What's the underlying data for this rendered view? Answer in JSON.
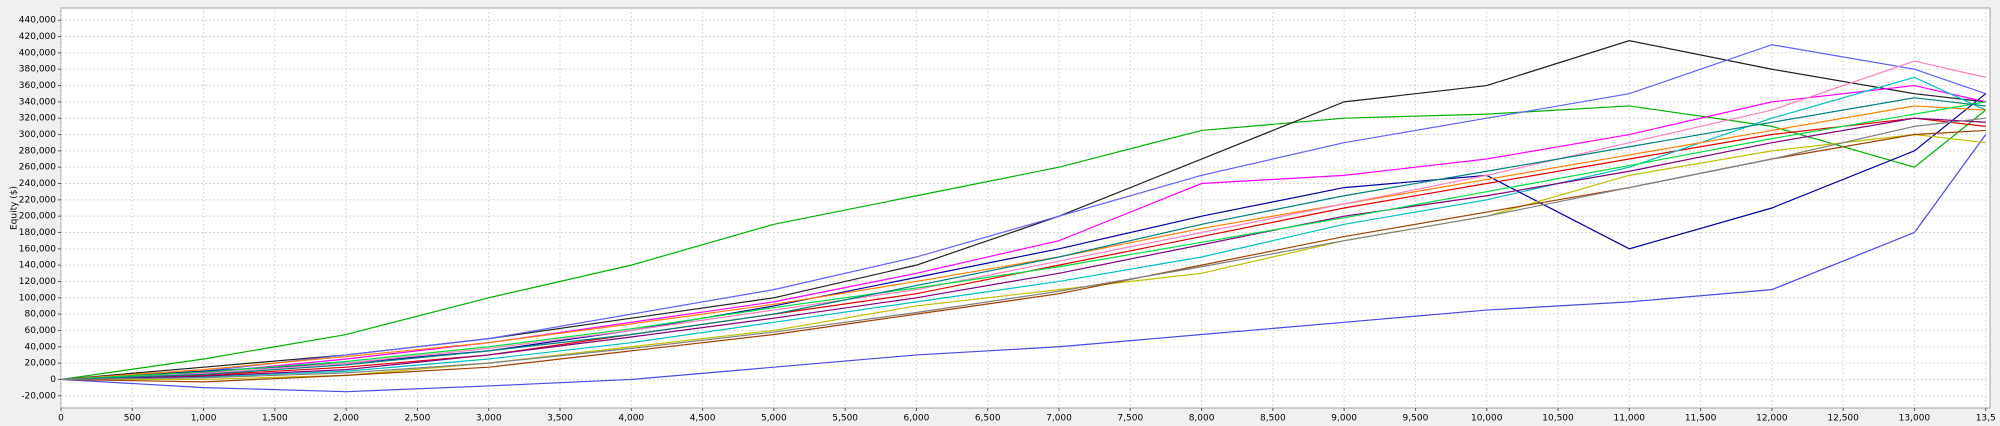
{
  "chart_data": {
    "type": "line",
    "y_label": "Equity ($)",
    "x": [
      0,
      1000,
      2000,
      3000,
      4000,
      5000,
      6000,
      7000,
      8000,
      9000,
      10000,
      11000,
      12000,
      13000,
      13500
    ],
    "series": [
      {
        "color": "#00b000",
        "values": [
          0,
          25000,
          55000,
          100000,
          140000,
          190000,
          225000,
          260000,
          305000,
          320000,
          325000,
          335000,
          310000,
          260000,
          330000
        ]
      },
      {
        "color": "#4a4ae6",
        "values": [
          0,
          -10000,
          -15000,
          -8000,
          0,
          15000,
          30000,
          40000,
          55000,
          70000,
          85000,
          95000,
          110000,
          180000,
          300000
        ]
      },
      {
        "color": "#202020",
        "values": [
          0,
          15000,
          30000,
          50000,
          75000,
          100000,
          140000,
          200000,
          270000,
          340000,
          360000,
          415000,
          380000,
          350000,
          340000
        ]
      },
      {
        "color": "#6060ff",
        "values": [
          0,
          10000,
          30000,
          50000,
          80000,
          110000,
          150000,
          200000,
          250000,
          290000,
          320000,
          350000,
          410000,
          380000,
          350000
        ]
      },
      {
        "color": "#ff00ff",
        "values": [
          0,
          8000,
          25000,
          45000,
          70000,
          95000,
          130000,
          170000,
          240000,
          250000,
          270000,
          300000,
          340000,
          360000,
          340000
        ]
      },
      {
        "color": "#e00000",
        "values": [
          0,
          5000,
          15000,
          30000,
          55000,
          80000,
          105000,
          140000,
          175000,
          210000,
          240000,
          270000,
          300000,
          320000,
          310000
        ]
      },
      {
        "color": "#00c0c0",
        "values": [
          0,
          3000,
          10000,
          25000,
          45000,
          70000,
          95000,
          120000,
          150000,
          190000,
          220000,
          260000,
          320000,
          370000,
          330000
        ]
      },
      {
        "color": "#0000a0",
        "values": [
          0,
          10000,
          20000,
          35000,
          60000,
          90000,
          125000,
          160000,
          200000,
          235000,
          250000,
          160000,
          210000,
          280000,
          350000
        ]
      },
      {
        "color": "#c0c000",
        "values": [
          0,
          0,
          5000,
          20000,
          40000,
          60000,
          90000,
          110000,
          130000,
          170000,
          200000,
          250000,
          280000,
          300000,
          290000
        ]
      },
      {
        "color": "#ff8000",
        "values": [
          0,
          12000,
          28000,
          45000,
          68000,
          92000,
          120000,
          150000,
          185000,
          215000,
          245000,
          275000,
          305000,
          335000,
          330000
        ]
      },
      {
        "color": "#ff80c0",
        "values": [
          0,
          7000,
          20000,
          38000,
          60000,
          85000,
          110000,
          145000,
          180000,
          215000,
          250000,
          290000,
          330000,
          390000,
          370000
        ]
      },
      {
        "color": "#800080",
        "values": [
          0,
          4000,
          12000,
          30000,
          52000,
          75000,
          100000,
          130000,
          165000,
          200000,
          225000,
          255000,
          290000,
          320000,
          315000
        ]
      },
      {
        "color": "#00e040",
        "values": [
          0,
          9000,
          22000,
          40000,
          62000,
          88000,
          112000,
          138000,
          168000,
          198000,
          230000,
          262000,
          295000,
          325000,
          340000
        ]
      },
      {
        "color": "#a04000",
        "values": [
          0,
          -3000,
          5000,
          15000,
          35000,
          55000,
          80000,
          105000,
          140000,
          175000,
          205000,
          235000,
          270000,
          300000,
          305000
        ]
      },
      {
        "color": "#008080",
        "values": [
          0,
          6000,
          18000,
          35000,
          55000,
          80000,
          115000,
          150000,
          190000,
          225000,
          255000,
          285000,
          315000,
          345000,
          335000
        ]
      },
      {
        "color": "#808080",
        "values": [
          0,
          2000,
          8000,
          20000,
          38000,
          58000,
          82000,
          108000,
          138000,
          170000,
          200000,
          235000,
          270000,
          310000,
          320000
        ]
      }
    ],
    "xlim": [
      0,
      13530
    ],
    "ylim": [
      -35000,
      455000
    ],
    "xticks": [
      0,
      500,
      {
        "value": 1000,
        "label": "1,000"
      },
      {
        "value": 1500,
        "label": "1,500"
      },
      {
        "value": 2000,
        "label": "2,000"
      },
      {
        "value": 2500,
        "label": "2,500"
      },
      {
        "value": 3000,
        "label": "3,000"
      },
      {
        "value": 3500,
        "label": "3,500"
      },
      {
        "value": 4000,
        "label": "4,000"
      },
      {
        "value": 4500,
        "label": "4,500"
      },
      {
        "value": 5000,
        "label": "5,000"
      },
      {
        "value": 5500,
        "label": "5,500"
      },
      {
        "value": 6000,
        "label": "6,000"
      },
      {
        "value": 6500,
        "label": "6,500"
      },
      {
        "value": 7000,
        "label": "7,000"
      },
      {
        "value": 7500,
        "label": "7,500"
      },
      {
        "value": 8000,
        "label": "8,000"
      },
      {
        "value": 8500,
        "label": "8,500"
      },
      {
        "value": 9000,
        "label": "9,000"
      },
      {
        "value": 9500,
        "label": "9,500"
      },
      {
        "value": 10000,
        "label": "10,000"
      },
      {
        "value": 10500,
        "label": "10,500"
      },
      {
        "value": 11000,
        "label": "11,000"
      },
      {
        "value": 11500,
        "label": "11,500"
      },
      {
        "value": 12000,
        "label": "12,000"
      },
      {
        "value": 12500,
        "label": "12,500"
      },
      {
        "value": 13000,
        "label": "13,000"
      },
      {
        "value": 13500,
        "label": "13,5"
      }
    ],
    "yticks": [
      {
        "value": -20000,
        "label": "-20,000"
      },
      0,
      {
        "value": 20000,
        "label": "20,000"
      },
      {
        "value": 40000,
        "label": "40,000"
      },
      {
        "value": 60000,
        "label": "60,000"
      },
      {
        "value": 80000,
        "label": "80,000"
      },
      {
        "value": 100000,
        "label": "100,000"
      },
      {
        "value": 120000,
        "label": "120,000"
      },
      {
        "value": 140000,
        "label": "140,000"
      },
      {
        "value": 160000,
        "label": "160,000"
      },
      {
        "value": 180000,
        "label": "180,000"
      },
      {
        "value": 200000,
        "label": "200,000"
      },
      {
        "value": 220000,
        "label": "220,000"
      },
      {
        "value": 240000,
        "label": "240,000"
      },
      {
        "value": 260000,
        "label": "260,000"
      },
      {
        "value": 280000,
        "label": "280,000"
      },
      {
        "value": 300000,
        "label": "300,000"
      },
      {
        "value": 320000,
        "label": "320,000"
      },
      {
        "value": 340000,
        "label": "340,000"
      },
      {
        "value": 360000,
        "label": "360,000"
      },
      {
        "value": 380000,
        "label": "380,000"
      },
      {
        "value": 400000,
        "label": "400,000"
      },
      {
        "value": 420000,
        "label": "420,000"
      },
      {
        "value": 440000,
        "label": "440,000"
      }
    ],
    "grid": true
  }
}
